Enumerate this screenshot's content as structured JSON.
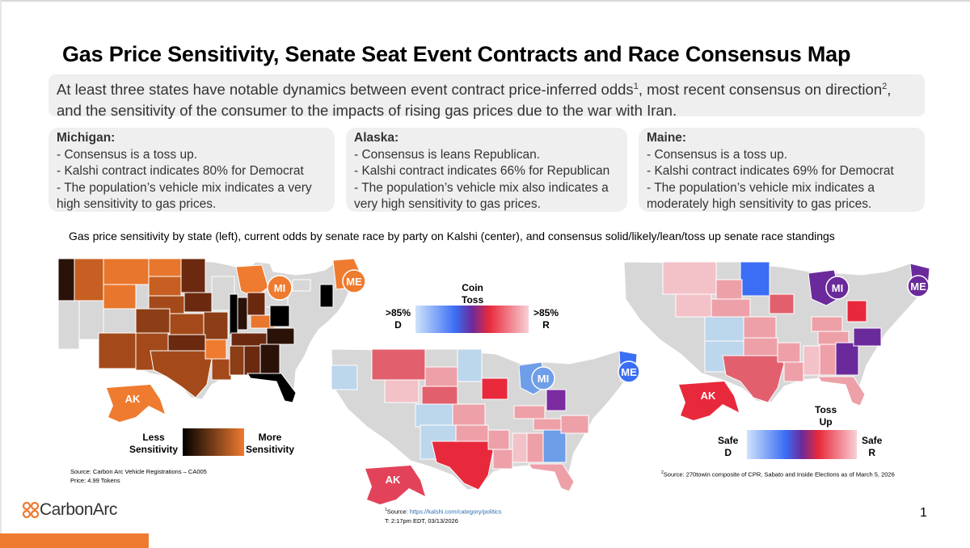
{
  "title": "Gas Price Sensitivity, Senate Seat Event Contracts and Race Consensus Map",
  "summary": {
    "text_a": "At least three states have notable dynamics between event contract price-inferred odds",
    "sup1": "1",
    "text_b": ", most recent consensus on direction",
    "sup2": "2",
    "text_c": ", and the sensitivity of the consumer to the impacts of rising gas prices due to the war with Iran."
  },
  "cards": [
    {
      "head": "Michigan:",
      "l1": "- Consensus is a toss up.",
      "l2": "- Kalshi contract indicates 80% for Democrat",
      "l3": "- The population’s vehicle mix indicates a very",
      "l4": "high sensitivity to gas prices."
    },
    {
      "head": "Alaska:",
      "l1": "- Consensus is leans Republican.",
      "l2": "- Kalshi contract indicates 66% for Republican",
      "l3": "- The population’s vehicle mix also indicates a",
      "l4": "very high sensitivity to gas prices."
    },
    {
      "head": "Maine:",
      "l1": "- Consensus is a toss up.",
      "l2": "- Kalshi contract indicates 69% for Democrat",
      "l3": "- The population’s vehicle mix indicates a",
      "l4": "moderately high sensitivity to gas prices."
    }
  ],
  "subtitle": "Gas price sensitivity by state (left), current odds by senate race by party on Kalshi (center), and consensus solid/likely/lean/toss up senate race standings",
  "labels": {
    "mi": "MI",
    "me": "ME",
    "ak": "AK"
  },
  "legend_left": {
    "low": "Less\nSensitivity",
    "high": "More\nSensitivity",
    "low_color": "#000000",
    "high_color": "#ee7b2f"
  },
  "legend_center": {
    "mid": "Coin\nToss",
    "left": ">85%\nD",
    "right": ">85%\nR"
  },
  "legend_right": {
    "mid": "Toss\nUp",
    "left": "Safe\nD",
    "right": "Safe\nR"
  },
  "colors": {
    "dem": "#3b6ef5",
    "rep": "#e8293b",
    "tossup": "#6b2a9b",
    "no_race": "#cccccc",
    "accent": "#ee7b2f"
  },
  "source_left": {
    "l1": "Source: Carbon Arc Vehicle Registrations – CA005",
    "l2": "Price: 4.99 Tokens"
  },
  "source_center": {
    "sup": "1",
    "prefix": "Source: ",
    "link": "https://kalshi.com/category/politics",
    "l2": "T: 2:17pm EDT, 03/13/2026"
  },
  "source_right": {
    "sup": "2",
    "text": "Source: 270towin composite of CPR, Sabato and Inside Elections as of March 5, 2026"
  },
  "logo": {
    "text": "CarbonArc",
    "icon": "carbon-arc-logo-icon"
  },
  "page_number": "1"
}
